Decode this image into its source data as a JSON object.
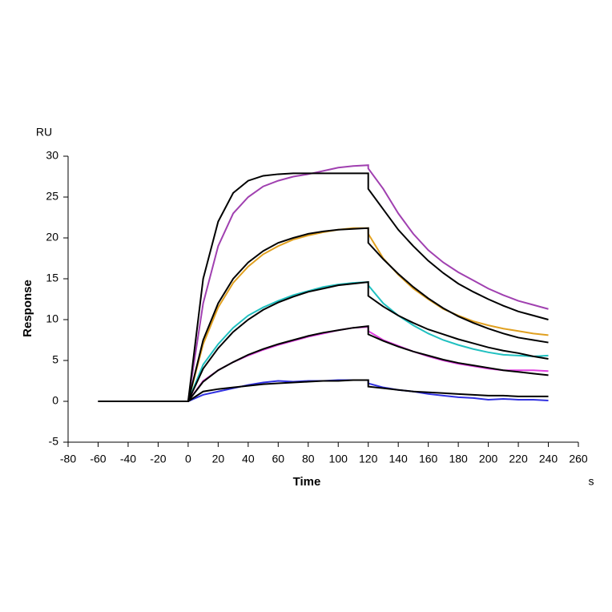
{
  "chart_data": {
    "type": "line",
    "y_unit": "RU",
    "ylabel": "Response",
    "xlabel": "Time",
    "x_unit": "s",
    "x": [
      -60,
      -50,
      -40,
      -30,
      -20,
      -10,
      0,
      10,
      20,
      30,
      40,
      50,
      60,
      70,
      80,
      90,
      100,
      110,
      120,
      120,
      130,
      140,
      150,
      160,
      170,
      180,
      190,
      200,
      210,
      220,
      230,
      240
    ],
    "xlim": [
      -80,
      260
    ],
    "xticks": [
      -80,
      -60,
      -40,
      -20,
      0,
      20,
      40,
      60,
      80,
      100,
      120,
      140,
      160,
      180,
      200,
      220,
      240,
      260
    ],
    "ylim": [
      -5,
      30
    ],
    "yticks": [
      -5,
      0,
      5,
      10,
      15,
      20,
      25,
      30
    ],
    "series": [
      {
        "color": "#a040b0",
        "values": [
          0,
          0,
          0,
          0,
          0,
          0,
          0,
          12,
          19,
          23,
          25,
          26.3,
          27,
          27.5,
          27.8,
          28.2,
          28.6,
          28.8,
          28.9,
          28.5,
          26,
          23,
          20.5,
          18.5,
          17,
          15.8,
          14.8,
          13.8,
          13,
          12.3,
          11.8,
          11.3
        ]
      },
      {
        "color": "#e0a020",
        "values": [
          0,
          0,
          0,
          0,
          0,
          0,
          0,
          7,
          11.5,
          14.5,
          16.5,
          18,
          19,
          19.8,
          20.3,
          20.7,
          21,
          21.2,
          21.2,
          20.5,
          17.5,
          15.5,
          13.8,
          12.5,
          11.3,
          10.5,
          9.8,
          9.3,
          8.9,
          8.6,
          8.3,
          8.1
        ]
      },
      {
        "color": "#20c0c0",
        "values": [
          0,
          0,
          0,
          0,
          0,
          0,
          0,
          4.5,
          7,
          9,
          10.5,
          11.5,
          12.3,
          13,
          13.5,
          14,
          14.3,
          14.5,
          14.6,
          14.2,
          12,
          10.5,
          9.3,
          8.3,
          7.5,
          6.9,
          6.4,
          6,
          5.7,
          5.6,
          5.5,
          5.6
        ]
      },
      {
        "color": "#e040e0",
        "values": [
          0,
          0,
          0,
          0,
          0,
          0,
          0,
          2.5,
          3.8,
          4.8,
          5.6,
          6.3,
          6.9,
          7.4,
          7.9,
          8.3,
          8.7,
          9,
          9.1,
          8.6,
          7.5,
          6.8,
          6.1,
          5.5,
          5,
          4.6,
          4.3,
          4,
          3.8,
          3.8,
          3.8,
          3.7
        ]
      },
      {
        "color": "#3030e0",
        "values": [
          0,
          0,
          0,
          0,
          0,
          0,
          0,
          0.8,
          1.2,
          1.6,
          2,
          2.3,
          2.5,
          2.4,
          2.5,
          2.5,
          2.6,
          2.6,
          2.6,
          2.2,
          1.7,
          1.4,
          1.2,
          0.9,
          0.7,
          0.5,
          0.4,
          0.2,
          0.3,
          0.2,
          0.2,
          0.1
        ]
      },
      {
        "color": "#000000",
        "values": [
          0,
          0,
          0,
          0,
          0,
          0,
          0,
          15,
          22,
          25.5,
          27,
          27.6,
          27.8,
          27.9,
          27.9,
          27.9,
          27.9,
          27.9,
          27.9,
          26,
          23.5,
          21,
          19,
          17.2,
          15.7,
          14.4,
          13.4,
          12.5,
          11.7,
          11,
          10.5,
          10
        ]
      },
      {
        "color": "#000000",
        "values": [
          0,
          0,
          0,
          0,
          0,
          0,
          0,
          7.5,
          12,
          15,
          17,
          18.4,
          19.4,
          20,
          20.5,
          20.8,
          21,
          21.1,
          21.2,
          19.4,
          17.4,
          15.6,
          14,
          12.6,
          11.4,
          10.4,
          9.6,
          8.9,
          8.3,
          7.8,
          7.5,
          7.2
        ]
      },
      {
        "color": "#000000",
        "values": [
          0,
          0,
          0,
          0,
          0,
          0,
          0,
          4,
          6.5,
          8.5,
          10,
          11.2,
          12.1,
          12.8,
          13.4,
          13.8,
          14.2,
          14.4,
          14.6,
          12.9,
          11.6,
          10.5,
          9.6,
          8.8,
          8.2,
          7.6,
          7.1,
          6.6,
          6.2,
          5.9,
          5.5,
          5.2
        ]
      },
      {
        "color": "#000000",
        "values": [
          0,
          0,
          0,
          0,
          0,
          0,
          0,
          2.4,
          3.8,
          4.8,
          5.7,
          6.4,
          7,
          7.5,
          8,
          8.4,
          8.7,
          9,
          9.2,
          8.2,
          7.4,
          6.7,
          6.1,
          5.6,
          5.1,
          4.7,
          4.4,
          4.1,
          3.8,
          3.6,
          3.4,
          3.2
        ]
      },
      {
        "color": "#000000",
        "values": [
          0,
          0,
          0,
          0,
          0,
          0,
          0,
          1.2,
          1.5,
          1.7,
          1.9,
          2.1,
          2.2,
          2.3,
          2.4,
          2.5,
          2.5,
          2.6,
          2.6,
          1.8,
          1.6,
          1.4,
          1.2,
          1.1,
          1,
          0.9,
          0.8,
          0.7,
          0.7,
          0.6,
          0.6,
          0.6
        ]
      }
    ]
  }
}
